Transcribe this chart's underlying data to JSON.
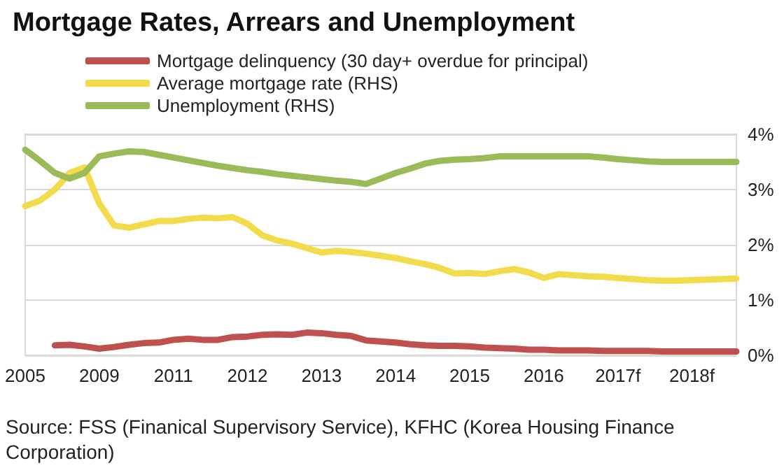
{
  "chart_data": {
    "type": "line",
    "title": "Mortgage Rates, Arrears and Unemployment",
    "categories": [
      "2005",
      null,
      null,
      null,
      null,
      "2009",
      null,
      null,
      null,
      null,
      "2011",
      null,
      null,
      null,
      null,
      "2012",
      null,
      null,
      null,
      null,
      "2013",
      null,
      null,
      null,
      null,
      "2014",
      null,
      null,
      null,
      null,
      "2015",
      null,
      null,
      null,
      null,
      "2016",
      null,
      null,
      null,
      null,
      "2017f",
      null,
      null,
      null,
      null,
      "2018f",
      null,
      null,
      null
    ],
    "series": [
      {
        "name": "Mortgage delinquency (30 day+ overdue for principal)",
        "color": "#c0504d",
        "values": [
          null,
          null,
          0.18,
          0.19,
          0.16,
          0.12,
          0.15,
          0.19,
          0.22,
          0.23,
          0.28,
          0.3,
          0.28,
          0.28,
          0.33,
          0.34,
          0.37,
          0.38,
          0.37,
          0.41,
          0.4,
          0.37,
          0.35,
          0.27,
          0.25,
          0.23,
          0.2,
          0.18,
          0.17,
          0.17,
          0.16,
          0.14,
          0.13,
          0.12,
          0.1,
          0.1,
          0.09,
          0.09,
          0.09,
          0.08,
          0.08,
          0.08,
          0.08,
          0.07,
          0.07,
          0.07,
          0.07,
          0.07,
          0.07
        ]
      },
      {
        "name": "Average mortgage rate (RHS)",
        "color": "#f2dc4b",
        "values": [
          2.7,
          2.8,
          3.0,
          3.3,
          3.4,
          2.75,
          2.35,
          2.31,
          2.37,
          2.43,
          2.43,
          2.47,
          2.49,
          2.48,
          2.5,
          2.38,
          2.17,
          2.08,
          2.02,
          1.94,
          1.86,
          1.89,
          1.87,
          1.84,
          1.8,
          1.76,
          1.7,
          1.65,
          1.58,
          1.48,
          1.49,
          1.47,
          1.52,
          1.56,
          1.5,
          1.4,
          1.47,
          1.45,
          1.43,
          1.42,
          1.4,
          1.38,
          1.36,
          1.35,
          1.35,
          1.36,
          1.37,
          1.38,
          1.39
        ]
      },
      {
        "name": "Unemployment (RHS)",
        "color": "#9bbb59",
        "values": [
          3.72,
          3.52,
          3.3,
          3.2,
          3.3,
          3.6,
          3.65,
          3.69,
          3.68,
          3.63,
          3.58,
          3.53,
          3.48,
          3.43,
          3.39,
          3.35,
          3.32,
          3.28,
          3.25,
          3.22,
          3.19,
          3.16,
          3.14,
          3.1,
          3.2,
          3.3,
          3.38,
          3.47,
          3.52,
          3.54,
          3.55,
          3.57,
          3.6,
          3.6,
          3.6,
          3.6,
          3.6,
          3.6,
          3.6,
          3.58,
          3.55,
          3.53,
          3.51,
          3.5,
          3.5,
          3.5,
          3.5,
          3.5,
          3.5
        ]
      }
    ],
    "ylim": [
      0,
      4
    ],
    "yticks": [
      {
        "value": 0,
        "label": "0%"
      },
      {
        "value": 1,
        "label": "1%"
      },
      {
        "value": 2,
        "label": "2%"
      },
      {
        "value": 3,
        "label": "3%"
      },
      {
        "value": 4,
        "label": "4%"
      }
    ],
    "grid": "y",
    "legend": "top",
    "marker": "none",
    "line_style": "solid",
    "annotations": [
      "Source: FSS (Finanical Supervisory Service), KFHC (Korea Housing Finance Corporation)"
    ]
  }
}
